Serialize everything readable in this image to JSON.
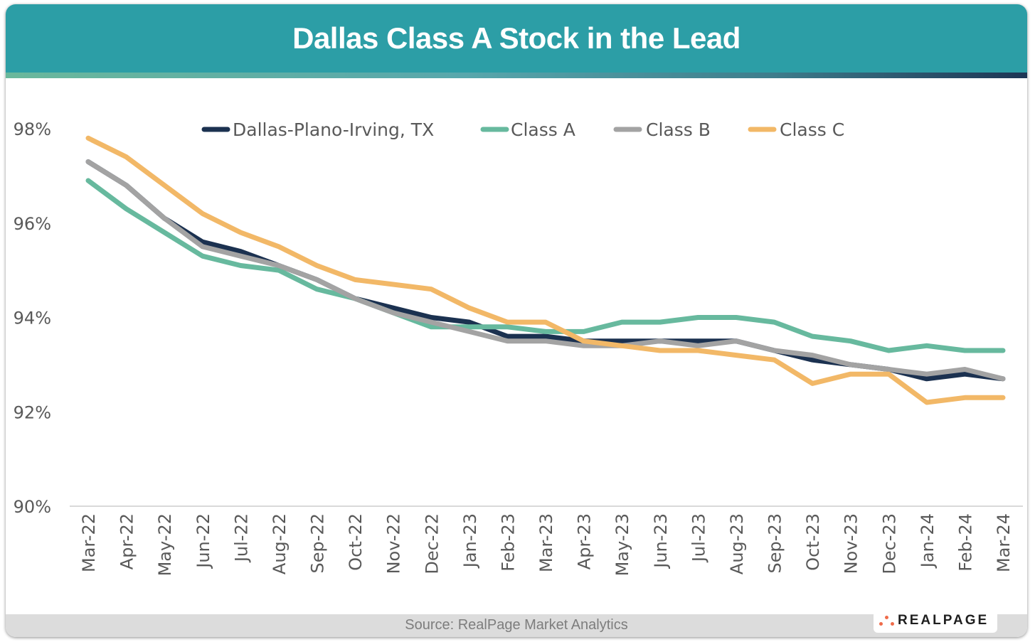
{
  "header": {
    "title": "Dallas Class A Stock in the Lead"
  },
  "footer": {
    "source": "Source: RealPage Market Analytics",
    "logo_text": "REALPAGE"
  },
  "chart_data": {
    "type": "line",
    "title": "Dallas Class A Stock in the Lead",
    "xlabel": "",
    "ylabel": "",
    "ylim": [
      90,
      98
    ],
    "yticks": [
      90,
      92,
      94,
      96,
      98
    ],
    "ytick_labels": [
      "90%",
      "92%",
      "94%",
      "96%",
      "98%"
    ],
    "grid": false,
    "legend_position": "top",
    "categories": [
      "Mar-22",
      "Apr-22",
      "May-22",
      "Jun-22",
      "Jul-22",
      "Aug-22",
      "Sep-22",
      "Oct-22",
      "Nov-22",
      "Dec-22",
      "Jan-23",
      "Feb-23",
      "Mar-23",
      "Apr-23",
      "May-23",
      "Jun-23",
      "Jul-23",
      "Aug-23",
      "Sep-23",
      "Oct-23",
      "Nov-23",
      "Dec-23",
      "Jan-24",
      "Feb-24",
      "Mar-24"
    ],
    "series": [
      {
        "name": "Dallas-Plano-Irving, TX",
        "color": "#1b3150",
        "values": [
          97.3,
          96.8,
          96.1,
          95.6,
          95.4,
          95.1,
          94.8,
          94.4,
          94.2,
          94.0,
          93.9,
          93.6,
          93.6,
          93.5,
          93.5,
          93.5,
          93.5,
          93.5,
          93.3,
          93.1,
          93.0,
          92.9,
          92.7,
          92.8,
          92.7
        ]
      },
      {
        "name": "Class A",
        "color": "#67b99e",
        "values": [
          96.9,
          96.3,
          95.8,
          95.3,
          95.1,
          95.0,
          94.6,
          94.4,
          94.1,
          93.8,
          93.8,
          93.8,
          93.7,
          93.7,
          93.9,
          93.9,
          94.0,
          94.0,
          93.9,
          93.6,
          93.5,
          93.3,
          93.4,
          93.3,
          93.3
        ]
      },
      {
        "name": "Class B",
        "color": "#a3a3a3",
        "values": [
          97.3,
          96.8,
          96.1,
          95.5,
          95.3,
          95.1,
          94.8,
          94.4,
          94.1,
          93.9,
          93.7,
          93.5,
          93.5,
          93.4,
          93.4,
          93.5,
          93.4,
          93.5,
          93.3,
          93.2,
          93.0,
          92.9,
          92.8,
          92.9,
          92.7
        ]
      },
      {
        "name": "Class C",
        "color": "#f2b867",
        "values": [
          97.8,
          97.4,
          96.8,
          96.2,
          95.8,
          95.5,
          95.1,
          94.8,
          94.7,
          94.6,
          94.2,
          93.9,
          93.9,
          93.5,
          93.4,
          93.3,
          93.3,
          93.2,
          93.1,
          92.6,
          92.8,
          92.8,
          92.2,
          92.3,
          92.3
        ]
      }
    ]
  }
}
